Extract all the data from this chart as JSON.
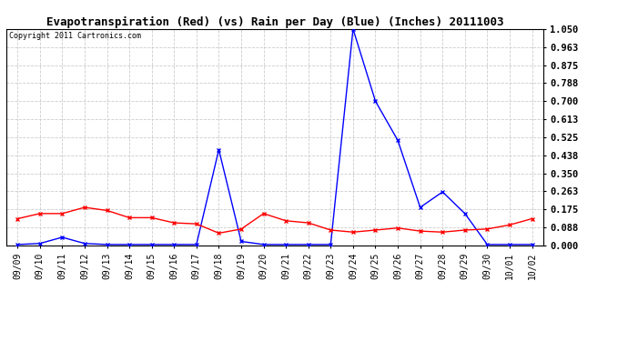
{
  "title": "Evapotranspiration (Red) (vs) Rain per Day (Blue) (Inches) 20111003",
  "copyright": "Copyright 2011 Cartronics.com",
  "x_labels": [
    "09/09",
    "09/10",
    "09/11",
    "09/12",
    "09/13",
    "09/14",
    "09/15",
    "09/16",
    "09/17",
    "09/18",
    "09/19",
    "09/20",
    "09/21",
    "09/22",
    "09/23",
    "09/24",
    "09/25",
    "09/26",
    "09/27",
    "09/28",
    "09/29",
    "09/30",
    "10/01",
    "10/02"
  ],
  "red_data": [
    0.13,
    0.155,
    0.155,
    0.185,
    0.17,
    0.135,
    0.135,
    0.11,
    0.105,
    0.06,
    0.08,
    0.155,
    0.12,
    0.11,
    0.075,
    0.065,
    0.075,
    0.085,
    0.07,
    0.065,
    0.075,
    0.08,
    0.1,
    0.13
  ],
  "blue_data": [
    0.005,
    0.01,
    0.04,
    0.01,
    0.005,
    0.005,
    0.005,
    0.005,
    0.005,
    0.465,
    0.02,
    0.005,
    0.005,
    0.005,
    0.005,
    1.05,
    0.7,
    0.51,
    0.185,
    0.26,
    0.155,
    0.005,
    0.005,
    0.005
  ],
  "ylim": [
    0.0,
    1.05
  ],
  "yticks": [
    0.0,
    0.088,
    0.175,
    0.263,
    0.35,
    0.438,
    0.525,
    0.613,
    0.7,
    0.788,
    0.875,
    0.963,
    1.05
  ],
  "background_color": "#ffffff",
  "grid_color": "#cccccc",
  "title_fontsize": 9,
  "copyright_fontsize": 6,
  "tick_fontsize": 7,
  "ytick_fontsize": 7.5
}
